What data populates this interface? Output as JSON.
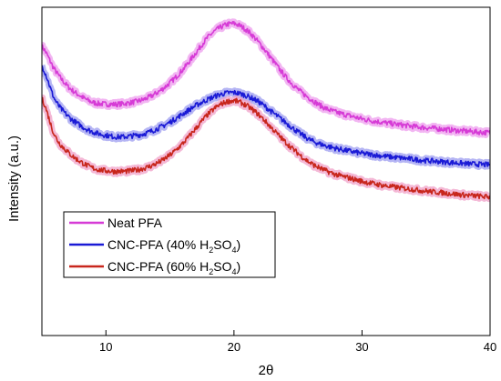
{
  "chart_data": {
    "type": "line",
    "xlabel": "2θ",
    "ylabel": "Intensity (a.u.)",
    "xlim": [
      5,
      40
    ],
    "ylim": [
      0,
      100
    ],
    "xticks": [
      10,
      20,
      30,
      40
    ],
    "grid": false,
    "legend_position": "lower-left",
    "x": [
      5,
      6,
      7,
      8,
      9,
      10,
      11,
      12,
      13,
      14,
      15,
      16,
      17,
      18,
      19,
      20,
      21,
      22,
      23,
      24,
      25,
      26,
      27,
      28,
      29,
      30,
      31,
      32,
      33,
      34,
      35,
      36,
      37,
      38,
      39,
      40
    ],
    "series": [
      {
        "name": "Neat PFA",
        "color": "#d63bd6",
        "halo": "#ee9cee",
        "values": [
          88,
          81,
          76,
          73,
          71,
          70.5,
          70.5,
          71,
          72,
          74,
          77,
          81,
          86,
          91,
          94,
          95,
          93,
          89,
          84,
          79,
          75,
          72,
          69.5,
          68,
          67,
          66,
          65.3,
          64.7,
          64.2,
          63.7,
          63.3,
          63,
          62.6,
          62.3,
          62,
          61.8
        ]
      },
      {
        "name": "CNC-PFA (40% H2SO4)",
        "label_parts": [
          "CNC-PFA (40% H",
          "2",
          "SO",
          "4",
          ")"
        ],
        "color": "#1a1ad6",
        "halo": "#9c9cf0",
        "values": [
          82,
          72,
          67,
          64,
          62,
          61,
          60.5,
          60.8,
          61.5,
          63,
          65,
          67.5,
          70,
          72,
          73.5,
          74,
          73,
          71,
          68,
          65,
          62,
          59.5,
          58,
          57,
          56.2,
          55.5,
          55,
          54.5,
          54.1,
          53.7,
          53.3,
          53,
          52.7,
          52.4,
          52.2,
          52
        ]
      },
      {
        "name": "CNC-PFA (60% H2SO4)",
        "label_parts": [
          "CNC-PFA (60% H",
          "2",
          "SO",
          "4",
          ")"
        ],
        "color": "#c8261c",
        "halo": "#f0a0c8",
        "values": [
          72,
          61,
          56,
          53,
          51,
          50.2,
          50,
          50.2,
          51,
          52.5,
          55,
          58.5,
          63,
          67.5,
          70.5,
          71.5,
          70,
          67,
          63,
          59,
          55.5,
          52.5,
          50.5,
          49,
          48,
          47,
          46.2,
          45.5,
          45,
          44.5,
          44,
          43.6,
          43.2,
          42.8,
          42.5,
          42.2
        ]
      }
    ]
  }
}
